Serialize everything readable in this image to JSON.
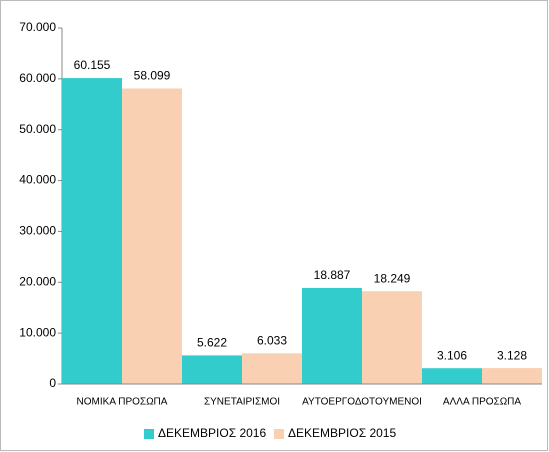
{
  "chart_data": {
    "type": "bar",
    "categories": [
      "ΝΟΜΙΚΑ ΠΡΟΣΩΠΑ",
      "ΣΥΝΕΤΑΙΡΙΣΜΟΙ",
      "ΑΥΤΟΕΡΓΟΔΟΤΟΥΜΕΝΟΙ",
      "ΑΛΛΑ ΠΡΟΣΩΠΑ"
    ],
    "series": [
      {
        "name": "ΔΕΚΕΜΒΡΙΟΣ 2016",
        "color": "#33cccc",
        "values": [
          60155,
          5622,
          18887,
          3106
        ],
        "value_labels": [
          "60.155",
          "5.622",
          "18.887",
          "3.106"
        ]
      },
      {
        "name": "ΔΕΚΕΜΒΡΙΟΣ 2015",
        "color": "#fad0b2",
        "values": [
          58099,
          6033,
          18249,
          3128
        ],
        "value_labels": [
          "58.099",
          "6.033",
          "18.249",
          "3.128"
        ]
      }
    ],
    "ylim": [
      0,
      70000
    ],
    "yticks": [
      0,
      {
        "value": 10000,
        "label": "10.000"
      },
      {
        "value": 20000,
        "label": "20.000"
      },
      {
        "value": 30000,
        "label": "30.000"
      },
      {
        "value": 40000,
        "label": "40.000"
      },
      {
        "value": 50000,
        "label": "50.000"
      },
      {
        "value": 60000,
        "label": "60.000"
      },
      {
        "value": 70000,
        "label": "70.000"
      }
    ],
    "grid": false,
    "legend": "bottom"
  }
}
